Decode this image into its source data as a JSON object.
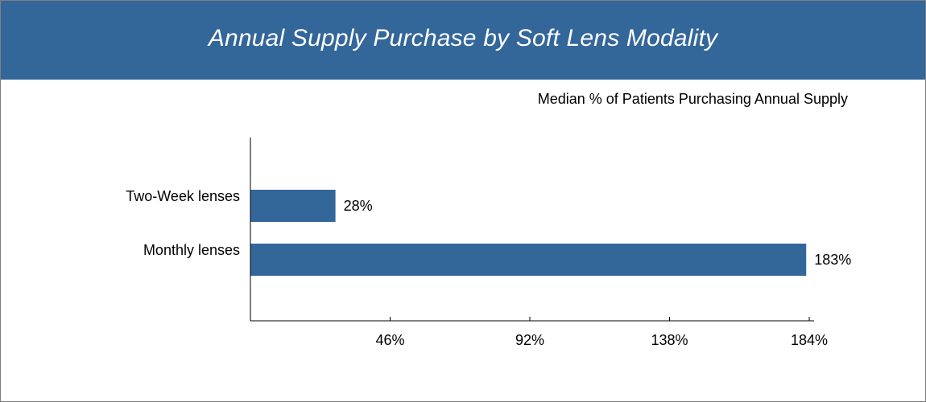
{
  "header": {
    "title": "Annual Supply Purchase by Soft Lens Modality"
  },
  "colors": {
    "banner": "#336699",
    "bar": "#336699"
  },
  "chart_data": {
    "type": "bar",
    "orientation": "horizontal",
    "title": "Annual Supply Purchase by Soft Lens Modality",
    "subtitle": "Median % of Patients Purchasing Annual Supply",
    "categories": [
      "Two-Week lenses",
      "Monthly lenses"
    ],
    "values": [
      28,
      183
    ],
    "data_labels": [
      "28%",
      "183%"
    ],
    "xlim": [
      0,
      184
    ],
    "x_ticks": [
      46,
      92,
      138,
      184
    ],
    "x_tick_labels": [
      "46%",
      "92%",
      "138%",
      "184%"
    ],
    "grid": false,
    "legend": "none"
  }
}
